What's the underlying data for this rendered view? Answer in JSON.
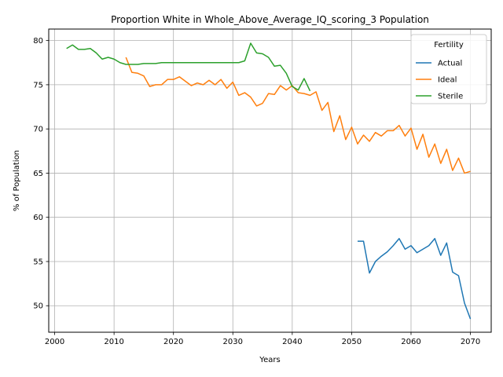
{
  "chart_data": {
    "type": "line",
    "title": "Proportion White in Whole_Above_Average_IQ_scoring_3 Population",
    "xlabel": "Years",
    "ylabel": "% of Population",
    "xlim": [
      1999,
      2073.5
    ],
    "ylim": [
      47,
      81.3
    ],
    "xticks": [
      2000,
      2010,
      2020,
      2030,
      2040,
      2050,
      2060,
      2070
    ],
    "yticks": [
      50,
      55,
      60,
      65,
      70,
      75,
      80
    ],
    "grid": true,
    "legend": {
      "title": "Fertility",
      "placement": "top-right"
    },
    "series": [
      {
        "name": "Actual",
        "color": "#1f77b4",
        "x": [
          2051,
          2052,
          2053,
          2054,
          2055,
          2056,
          2057,
          2058,
          2059,
          2060,
          2061,
          2062,
          2063,
          2064,
          2065,
          2066,
          2067,
          2068,
          2069,
          2070
        ],
        "y": [
          57.3,
          57.3,
          53.7,
          55.0,
          55.6,
          56.1,
          56.8,
          57.6,
          56.4,
          56.8,
          56.0,
          56.4,
          56.8,
          57.6,
          55.7,
          57.1,
          53.8,
          53.4,
          50.3,
          48.5
        ]
      },
      {
        "name": "Ideal",
        "color": "#ff7f0e",
        "x": [
          2012,
          2013,
          2014,
          2015,
          2016,
          2017,
          2018,
          2019,
          2020,
          2021,
          2022,
          2023,
          2024,
          2025,
          2026,
          2027,
          2028,
          2029,
          2030,
          2031,
          2032,
          2033,
          2034,
          2035,
          2036,
          2037,
          2038,
          2039,
          2040,
          2041,
          2042,
          2043,
          2044,
          2045,
          2046,
          2047,
          2048,
          2049,
          2050,
          2051,
          2052,
          2053,
          2054,
          2055,
          2056,
          2057,
          2058,
          2059,
          2060,
          2061,
          2062,
          2063,
          2064,
          2065,
          2066,
          2067,
          2068,
          2069,
          2070
        ],
        "y": [
          78.1,
          76.4,
          76.3,
          76.0,
          74.8,
          75.0,
          75.0,
          75.6,
          75.6,
          75.9,
          75.4,
          74.9,
          75.2,
          75.0,
          75.5,
          75.0,
          75.6,
          74.6,
          75.3,
          73.8,
          74.1,
          73.6,
          72.6,
          72.9,
          74.0,
          73.9,
          74.9,
          74.4,
          74.9,
          74.1,
          74.0,
          73.8,
          74.2,
          72.1,
          73.0,
          69.7,
          71.5,
          68.8,
          70.2,
          68.3,
          69.3,
          68.6,
          69.6,
          69.2,
          69.8,
          69.8,
          70.4,
          69.2,
          70.1,
          67.7,
          69.4,
          66.8,
          68.3,
          66.1,
          67.7,
          65.3,
          66.7,
          65.0,
          65.2
        ]
      },
      {
        "name": "Sterile",
        "color": "#2ca02c",
        "x": [
          2002,
          2003,
          2004,
          2005,
          2006,
          2007,
          2008,
          2009,
          2010,
          2011,
          2012,
          2013,
          2014,
          2015,
          2016,
          2017,
          2018,
          2019,
          2020,
          2021,
          2022,
          2023,
          2024,
          2025,
          2026,
          2027,
          2028,
          2029,
          2030,
          2031,
          2032,
          2033,
          2034,
          2035,
          2036,
          2037,
          2038,
          2039,
          2040,
          2041,
          2042,
          2043
        ],
        "y": [
          79.1,
          79.5,
          79.0,
          79.0,
          79.1,
          78.6,
          77.9,
          78.1,
          77.9,
          77.5,
          77.3,
          77.3,
          77.3,
          77.4,
          77.4,
          77.4,
          77.5,
          77.5,
          77.5,
          77.5,
          77.5,
          77.5,
          77.5,
          77.5,
          77.5,
          77.5,
          77.5,
          77.5,
          77.5,
          77.5,
          77.7,
          79.7,
          78.6,
          78.5,
          78.1,
          77.1,
          77.2,
          76.3,
          74.8,
          74.4,
          75.7,
          74.3
        ]
      }
    ]
  }
}
